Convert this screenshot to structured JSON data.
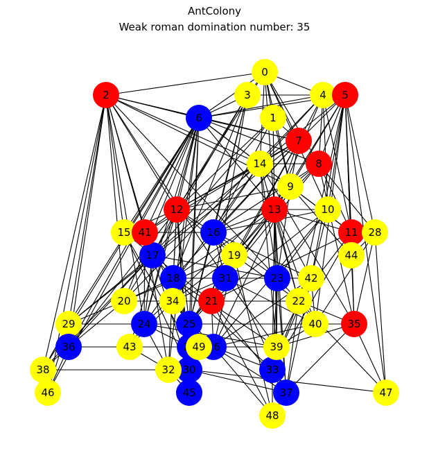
{
  "title": "AntColony",
  "subtitle": "Weak roman domination number: 35",
  "colors": {
    "red": "#ff0000",
    "blue": "#0000ff",
    "yellow": "#ffff00"
  },
  "nodes": [
    {
      "id": "0",
      "color": "yellow"
    },
    {
      "id": "1",
      "color": "yellow"
    },
    {
      "id": "2",
      "color": "red"
    },
    {
      "id": "3",
      "color": "yellow"
    },
    {
      "id": "4",
      "color": "yellow"
    },
    {
      "id": "5",
      "color": "red"
    },
    {
      "id": "6",
      "color": "blue"
    },
    {
      "id": "7",
      "color": "red"
    },
    {
      "id": "8",
      "color": "red"
    },
    {
      "id": "9",
      "color": "yellow"
    },
    {
      "id": "10",
      "color": "yellow"
    },
    {
      "id": "11",
      "color": "red"
    },
    {
      "id": "12",
      "color": "red"
    },
    {
      "id": "13",
      "color": "red"
    },
    {
      "id": "14",
      "color": "yellow"
    },
    {
      "id": "15",
      "color": "yellow"
    },
    {
      "id": "16",
      "color": "blue"
    },
    {
      "id": "17",
      "color": "blue"
    },
    {
      "id": "18",
      "color": "blue"
    },
    {
      "id": "19",
      "color": "yellow"
    },
    {
      "id": "20",
      "color": "yellow"
    },
    {
      "id": "21",
      "color": "red"
    },
    {
      "id": "22",
      "color": "yellow"
    },
    {
      "id": "23",
      "color": "blue"
    },
    {
      "id": "24",
      "color": "blue"
    },
    {
      "id": "25",
      "color": "blue"
    },
    {
      "id": "26",
      "color": "blue"
    },
    {
      "id": "27",
      "color": "blue"
    },
    {
      "id": "28",
      "color": "yellow"
    },
    {
      "id": "29",
      "color": "yellow"
    },
    {
      "id": "30",
      "color": "blue"
    },
    {
      "id": "31",
      "color": "blue"
    },
    {
      "id": "32",
      "color": "yellow"
    },
    {
      "id": "33",
      "color": "blue"
    },
    {
      "id": "34",
      "color": "yellow"
    },
    {
      "id": "35",
      "color": "red"
    },
    {
      "id": "36",
      "color": "blue"
    },
    {
      "id": "37",
      "color": "blue"
    },
    {
      "id": "38",
      "color": "yellow"
    },
    {
      "id": "39",
      "color": "yellow"
    },
    {
      "id": "40",
      "color": "yellow"
    },
    {
      "id": "41",
      "color": "red"
    },
    {
      "id": "42",
      "color": "yellow"
    },
    {
      "id": "43",
      "color": "yellow"
    },
    {
      "id": "44",
      "color": "yellow"
    },
    {
      "id": "45",
      "color": "blue"
    },
    {
      "id": "46",
      "color": "yellow"
    },
    {
      "id": "47",
      "color": "yellow"
    },
    {
      "id": "48",
      "color": "yellow"
    },
    {
      "id": "49",
      "color": "yellow"
    }
  ],
  "edges": [
    [
      "0",
      "2"
    ],
    [
      "0",
      "3"
    ],
    [
      "0",
      "4"
    ],
    [
      "0",
      "1"
    ],
    [
      "0",
      "7"
    ],
    [
      "0",
      "8"
    ],
    [
      "0",
      "14"
    ],
    [
      "0",
      "13"
    ],
    [
      "0",
      "12"
    ],
    [
      "0",
      "6"
    ],
    [
      "0",
      "9"
    ],
    [
      "0",
      "10"
    ],
    [
      "2",
      "6"
    ],
    [
      "2",
      "14"
    ],
    [
      "2",
      "7"
    ],
    [
      "2",
      "12"
    ],
    [
      "2",
      "15"
    ],
    [
      "2",
      "41"
    ],
    [
      "2",
      "17"
    ],
    [
      "2",
      "24"
    ],
    [
      "2",
      "29"
    ],
    [
      "2",
      "36"
    ],
    [
      "2",
      "38"
    ],
    [
      "2",
      "46"
    ],
    [
      "2",
      "20"
    ],
    [
      "2",
      "9"
    ],
    [
      "2",
      "23"
    ],
    [
      "2",
      "31"
    ],
    [
      "3",
      "6"
    ],
    [
      "3",
      "12"
    ],
    [
      "3",
      "17"
    ],
    [
      "3",
      "18"
    ],
    [
      "3",
      "16"
    ],
    [
      "3",
      "21"
    ],
    [
      "3",
      "25"
    ],
    [
      "3",
      "4"
    ],
    [
      "4",
      "6"
    ],
    [
      "4",
      "7"
    ],
    [
      "4",
      "14"
    ],
    [
      "4",
      "13"
    ],
    [
      "4",
      "8"
    ],
    [
      "4",
      "10"
    ],
    [
      "4",
      "11"
    ],
    [
      "4",
      "20"
    ],
    [
      "5",
      "6"
    ],
    [
      "5",
      "7"
    ],
    [
      "5",
      "8"
    ],
    [
      "5",
      "9"
    ],
    [
      "5",
      "13"
    ],
    [
      "5",
      "14"
    ],
    [
      "5",
      "10"
    ],
    [
      "5",
      "11"
    ],
    [
      "5",
      "44"
    ],
    [
      "5",
      "47"
    ],
    [
      "5",
      "35"
    ],
    [
      "5",
      "40"
    ],
    [
      "5",
      "42"
    ],
    [
      "5",
      "22"
    ],
    [
      "5",
      "28"
    ],
    [
      "1",
      "7"
    ],
    [
      "1",
      "12"
    ],
    [
      "1",
      "13"
    ],
    [
      "1",
      "16"
    ],
    [
      "1",
      "17"
    ],
    [
      "1",
      "9"
    ],
    [
      "6",
      "7"
    ],
    [
      "6",
      "14"
    ],
    [
      "6",
      "12"
    ],
    [
      "6",
      "15"
    ],
    [
      "6",
      "41"
    ],
    [
      "6",
      "24"
    ],
    [
      "6",
      "20"
    ],
    [
      "6",
      "29"
    ],
    [
      "6",
      "36"
    ],
    [
      "6",
      "38"
    ],
    [
      "6",
      "46"
    ],
    [
      "6",
      "8"
    ],
    [
      "6",
      "13"
    ],
    [
      "6",
      "11"
    ],
    [
      "6",
      "9"
    ],
    [
      "6",
      "43"
    ],
    [
      "6",
      "32"
    ],
    [
      "6",
      "34"
    ],
    [
      "6",
      "25"
    ],
    [
      "6",
      "27"
    ],
    [
      "7",
      "14"
    ],
    [
      "7",
      "9"
    ],
    [
      "7",
      "12"
    ],
    [
      "7",
      "13"
    ],
    [
      "7",
      "16"
    ],
    [
      "7",
      "19"
    ],
    [
      "7",
      "18"
    ],
    [
      "7",
      "21"
    ],
    [
      "7",
      "29"
    ],
    [
      "7",
      "41"
    ],
    [
      "8",
      "9"
    ],
    [
      "8",
      "13"
    ],
    [
      "8",
      "14"
    ],
    [
      "8",
      "16"
    ],
    [
      "8",
      "31"
    ],
    [
      "8",
      "28"
    ],
    [
      "8",
      "11"
    ],
    [
      "8",
      "35"
    ],
    [
      "14",
      "12"
    ],
    [
      "14",
      "16"
    ],
    [
      "14",
      "17"
    ],
    [
      "14",
      "24"
    ],
    [
      "14",
      "39"
    ],
    [
      "14",
      "22"
    ],
    [
      "14",
      "35"
    ],
    [
      "14",
      "23"
    ],
    [
      "9",
      "13"
    ],
    [
      "9",
      "19"
    ],
    [
      "9",
      "26"
    ],
    [
      "9",
      "31"
    ],
    [
      "9",
      "23"
    ],
    [
      "9",
      "12"
    ],
    [
      "9",
      "24"
    ],
    [
      "9",
      "44"
    ],
    [
      "9",
      "11"
    ],
    [
      "10",
      "13"
    ],
    [
      "10",
      "21"
    ],
    [
      "10",
      "42"
    ],
    [
      "10",
      "23"
    ],
    [
      "10",
      "26"
    ],
    [
      "10",
      "16"
    ],
    [
      "11",
      "28"
    ],
    [
      "11",
      "44"
    ],
    [
      "11",
      "35"
    ],
    [
      "11",
      "22"
    ],
    [
      "11",
      "21"
    ],
    [
      "11",
      "13"
    ],
    [
      "11",
      "33"
    ],
    [
      "28",
      "44"
    ],
    [
      "28",
      "47"
    ],
    [
      "28",
      "35"
    ],
    [
      "28",
      "40"
    ],
    [
      "12",
      "15"
    ],
    [
      "12",
      "41"
    ],
    [
      "12",
      "16"
    ],
    [
      "12",
      "17"
    ],
    [
      "12",
      "18"
    ],
    [
      "12",
      "24"
    ],
    [
      "12",
      "25"
    ],
    [
      "12",
      "30"
    ],
    [
      "12",
      "45"
    ],
    [
      "12",
      "32"
    ],
    [
      "12",
      "36"
    ],
    [
      "12",
      "13"
    ],
    [
      "12",
      "19"
    ],
    [
      "13",
      "16"
    ],
    [
      "13",
      "19"
    ],
    [
      "13",
      "31"
    ],
    [
      "13",
      "23"
    ],
    [
      "13",
      "22"
    ],
    [
      "13",
      "39"
    ],
    [
      "13",
      "33"
    ],
    [
      "13",
      "37"
    ],
    [
      "13",
      "42"
    ],
    [
      "13",
      "25"
    ],
    [
      "13",
      "40"
    ],
    [
      "13",
      "18"
    ],
    [
      "15",
      "41"
    ],
    [
      "15",
      "16"
    ],
    [
      "15",
      "21"
    ],
    [
      "15",
      "30"
    ],
    [
      "15",
      "27"
    ],
    [
      "41",
      "17"
    ],
    [
      "41",
      "18"
    ],
    [
      "41",
      "24"
    ],
    [
      "41",
      "25"
    ],
    [
      "41",
      "30"
    ],
    [
      "41",
      "32"
    ],
    [
      "41",
      "16"
    ],
    [
      "16",
      "19"
    ],
    [
      "16",
      "31"
    ],
    [
      "16",
      "25"
    ],
    [
      "16",
      "37"
    ],
    [
      "16",
      "23"
    ],
    [
      "16",
      "42"
    ],
    [
      "17",
      "18"
    ],
    [
      "17",
      "20"
    ],
    [
      "17",
      "24"
    ],
    [
      "17",
      "23"
    ],
    [
      "17",
      "36"
    ],
    [
      "17",
      "29"
    ],
    [
      "17",
      "38"
    ],
    [
      "19",
      "34"
    ],
    [
      "19",
      "20"
    ],
    [
      "19",
      "25"
    ],
    [
      "19",
      "26"
    ],
    [
      "19",
      "31"
    ],
    [
      "19",
      "48"
    ],
    [
      "19",
      "22"
    ],
    [
      "18",
      "23"
    ],
    [
      "18",
      "34"
    ],
    [
      "18",
      "25"
    ],
    [
      "18",
      "27"
    ],
    [
      "18",
      "39"
    ],
    [
      "18",
      "33"
    ],
    [
      "18",
      "20"
    ],
    [
      "31",
      "34"
    ],
    [
      "31",
      "21"
    ],
    [
      "31",
      "25"
    ],
    [
      "31",
      "40"
    ],
    [
      "31",
      "39"
    ],
    [
      "31",
      "42"
    ],
    [
      "23",
      "42"
    ],
    [
      "23",
      "22"
    ],
    [
      "23",
      "33"
    ],
    [
      "23",
      "37"
    ],
    [
      "23",
      "39"
    ],
    [
      "42",
      "22"
    ],
    [
      "42",
      "40"
    ],
    [
      "42",
      "39"
    ],
    [
      "42",
      "33"
    ],
    [
      "42",
      "26"
    ],
    [
      "42",
      "37"
    ],
    [
      "20",
      "21"
    ],
    [
      "20",
      "36"
    ],
    [
      "20",
      "29"
    ],
    [
      "20",
      "34"
    ],
    [
      "34",
      "21"
    ],
    [
      "34",
      "25"
    ],
    [
      "34",
      "43"
    ],
    [
      "34",
      "26"
    ],
    [
      "21",
      "22"
    ],
    [
      "21",
      "25"
    ],
    [
      "21",
      "26"
    ],
    [
      "21",
      "48"
    ],
    [
      "21",
      "37"
    ],
    [
      "22",
      "40"
    ],
    [
      "22",
      "35"
    ],
    [
      "22",
      "37"
    ],
    [
      "22",
      "33"
    ],
    [
      "22",
      "47"
    ],
    [
      "40",
      "35"
    ],
    [
      "40",
      "39"
    ],
    [
      "40",
      "26"
    ],
    [
      "35",
      "39"
    ],
    [
      "35",
      "37"
    ],
    [
      "35",
      "47"
    ],
    [
      "29",
      "36"
    ],
    [
      "29",
      "24"
    ],
    [
      "29",
      "38"
    ],
    [
      "29",
      "46"
    ],
    [
      "24",
      "25"
    ],
    [
      "24",
      "43"
    ],
    [
      "24",
      "32"
    ],
    [
      "24",
      "27"
    ],
    [
      "24",
      "39"
    ],
    [
      "25",
      "26"
    ],
    [
      "25",
      "27"
    ],
    [
      "25",
      "30"
    ],
    [
      "25",
      "45"
    ],
    [
      "25",
      "35"
    ],
    [
      "36",
      "38"
    ],
    [
      "36",
      "46"
    ],
    [
      "36",
      "43"
    ],
    [
      "43",
      "27"
    ],
    [
      "43",
      "32"
    ],
    [
      "27",
      "49"
    ],
    [
      "27",
      "26"
    ],
    [
      "27",
      "30"
    ],
    [
      "49",
      "26"
    ],
    [
      "49",
      "30"
    ],
    [
      "49",
      "45"
    ],
    [
      "26",
      "33"
    ],
    [
      "26",
      "37"
    ],
    [
      "26",
      "39"
    ],
    [
      "26",
      "48"
    ],
    [
      "39",
      "33"
    ],
    [
      "32",
      "30"
    ],
    [
      "32",
      "45"
    ],
    [
      "30",
      "45"
    ],
    [
      "30",
      "47"
    ],
    [
      "30",
      "37"
    ],
    [
      "33",
      "37"
    ],
    [
      "33",
      "48"
    ],
    [
      "38",
      "46"
    ],
    [
      "38",
      "32"
    ],
    [
      "37",
      "48"
    ]
  ]
}
